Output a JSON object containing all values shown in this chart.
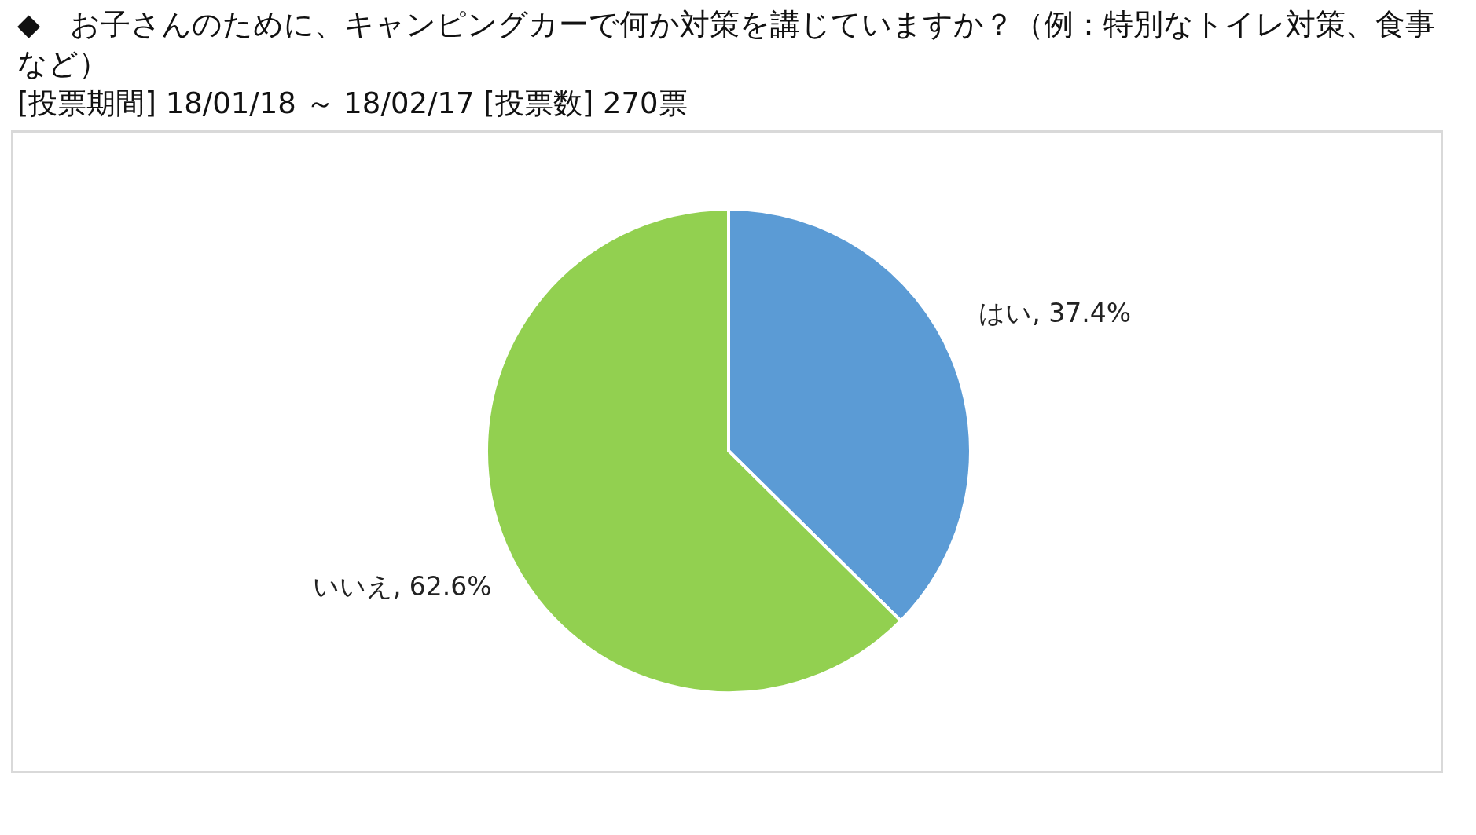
{
  "chart_data": {
    "type": "pie",
    "title": "◆　お子さんのために、キャンピングカーで何か対策を講じていますか？（例：特別なトイレ対策、食事など）",
    "subtitle": "[投票期間] 18/01/18 ～ 18/02/17 [投票数] 270票",
    "categories": [
      "はい",
      "いいえ"
    ],
    "values": [
      37.4,
      62.6
    ],
    "colors": [
      "#5b9bd5",
      "#92d050"
    ],
    "value_labels": [
      "37.4%",
      "62.6%"
    ],
    "legend": false
  }
}
